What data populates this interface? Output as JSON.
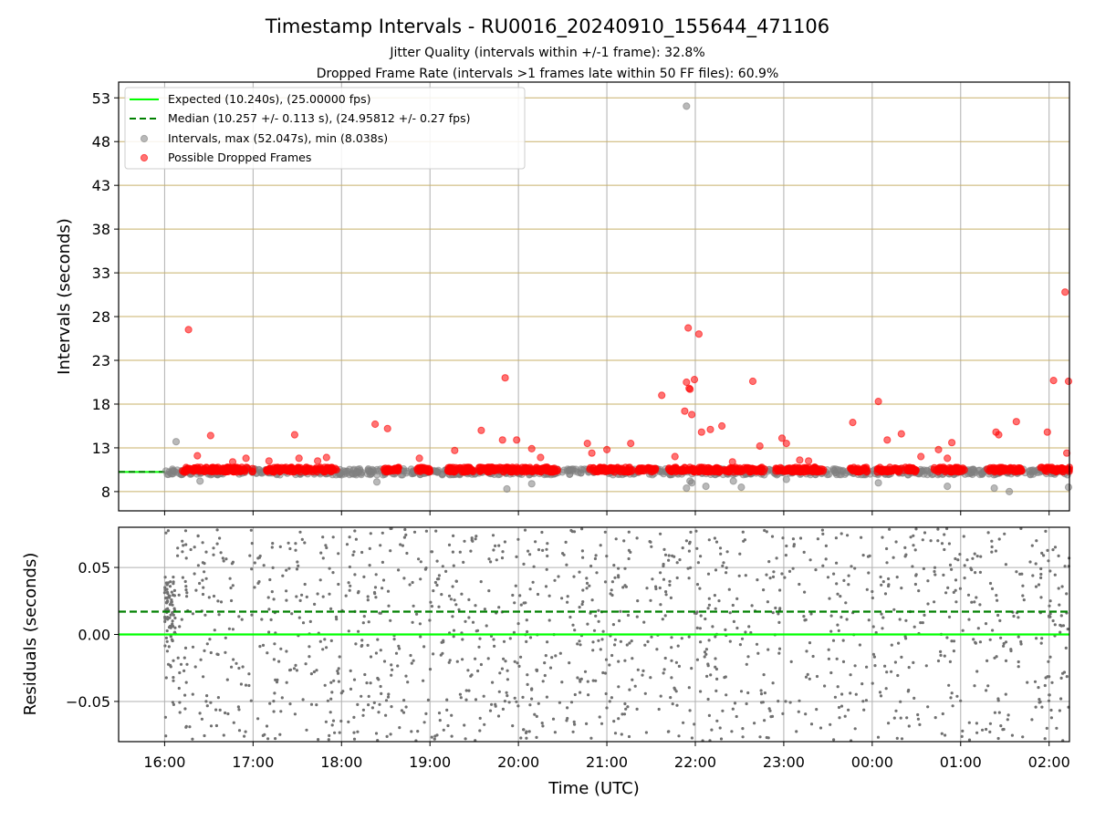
{
  "chart_data": [
    {
      "type": "scatter",
      "title": "Timestamp Intervals - RU0016_20240910_155644_471106",
      "subtitle_lines": [
        "Jitter Quality (intervals within +/-1 frame): 32.8%",
        "Dropped Frame Rate (intervals >1 frames late within 50 FF files): 60.9%"
      ],
      "ylabel": "Intervals (seconds)",
      "ylim": [
        5.8,
        54.8
      ],
      "y_ticks": [
        "8",
        "13",
        "18",
        "23",
        "28",
        "33",
        "38",
        "43",
        "48",
        "53"
      ],
      "y_tick_values": [
        8,
        13,
        18,
        23,
        28,
        33,
        38,
        43,
        48,
        53
      ],
      "grid": "horizontal and vertical",
      "legend_position": "top-left",
      "legend": [
        "Expected (10.240s), (25.00000 fps)",
        "Median (10.257 +/- 0.113 s), (24.95812 +/- 0.27 fps)",
        "Intervals, max (52.047s), min (8.038s)",
        "Possible Dropped Frames"
      ],
      "expected_interval": 10.24,
      "median_interval": 10.257,
      "max_interval": 52.047,
      "min_interval": 8.038,
      "series": [
        {
          "name": "Possible Dropped Frames",
          "color": "#ff0000",
          "x": [
            16.27,
            16.37,
            16.52,
            16.77,
            16.92,
            17.18,
            17.47,
            17.52,
            17.73,
            17.83,
            18.38,
            18.52,
            18.88,
            19.28,
            19.58,
            19.82,
            19.85,
            19.98,
            20.15,
            20.25,
            20.78,
            20.83,
            21.0,
            21.27,
            21.62,
            21.77,
            21.88,
            21.9,
            21.92,
            21.93,
            21.94,
            21.96,
            21.99,
            22.04,
            22.07,
            22.17,
            22.3,
            22.42,
            22.65,
            22.73,
            22.98,
            23.03,
            23.18,
            23.28,
            23.78,
            24.07,
            24.17,
            24.33,
            24.55,
            24.75,
            24.85,
            24.9,
            25.4,
            25.43,
            25.63,
            25.98,
            26.05,
            26.18,
            26.2,
            26.22
          ],
          "y": [
            26.5,
            12.1,
            14.4,
            11.4,
            11.8,
            11.5,
            14.5,
            11.8,
            11.5,
            11.9,
            15.7,
            15.2,
            11.8,
            12.7,
            15.0,
            13.9,
            21.0,
            13.9,
            12.9,
            11.9,
            13.5,
            12.4,
            12.8,
            13.5,
            19.0,
            12.0,
            17.2,
            20.5,
            26.7,
            19.8,
            19.7,
            16.8,
            20.8,
            26.0,
            14.8,
            15.1,
            15.5,
            11.4,
            20.6,
            13.2,
            14.1,
            13.5,
            11.6,
            11.5,
            15.9,
            18.3,
            13.9,
            14.6,
            12.0,
            12.8,
            11.8,
            13.6,
            14.8,
            14.5,
            16.0,
            14.8,
            20.7,
            30.8,
            12.4,
            20.6
          ]
        },
        {
          "name": "Intervals, max (52.047s), min (8.038s)",
          "color": "#808080",
          "x": [
            16.13,
            16.4,
            18.4,
            19.87,
            20.15,
            21.9,
            21.94,
            21.96,
            22.12,
            22.43,
            22.52,
            23.03,
            24.07,
            24.85,
            25.38,
            25.55,
            26.22
          ],
          "y": [
            13.7,
            9.2,
            9.1,
            8.3,
            8.9,
            8.4,
            9.2,
            9.0,
            8.6,
            9.2,
            8.5,
            9.4,
            9.0,
            8.6,
            8.4,
            8.0,
            8.5
          ]
        },
        {
          "name": "Intervals, max (52.047s), min (8.038s)",
          "color": "#808080",
          "x": [
            21.9
          ],
          "y": [
            52.047
          ]
        }
      ]
    },
    {
      "type": "scatter",
      "ylabel": "Residuals (seconds)",
      "xlabel": "Time (UTC)",
      "ylim": [
        -0.08,
        0.08
      ],
      "y_ticks": [
        "0.05",
        "0.00",
        "−0.05"
      ],
      "y_tick_values": [
        0.05,
        0.0,
        -0.05
      ],
      "x_ticks": [
        "16:00",
        "17:00",
        "18:00",
        "19:00",
        "20:00",
        "21:00",
        "22:00",
        "23:00",
        "00:00",
        "01:00",
        "02:00"
      ],
      "x_tick_values": [
        16,
        17,
        18,
        19,
        20,
        21,
        22,
        23,
        24,
        25,
        26
      ],
      "xlim": [
        15.48,
        26.23
      ],
      "expected_residual": 0.0,
      "median_residual": 0.017,
      "grid": "horizontal and vertical",
      "residual_spread": "about 1500 points between 16:00 and 02:15, roughly uniform over the range -0.08 to 0.08 s"
    }
  ],
  "colors": {
    "expected": "#00ff00",
    "median": "#008000",
    "intervals": "#808080",
    "dropped": "#ff0000",
    "hgrid_top": "#c8b06a",
    "grid": "#b0b0b0"
  }
}
